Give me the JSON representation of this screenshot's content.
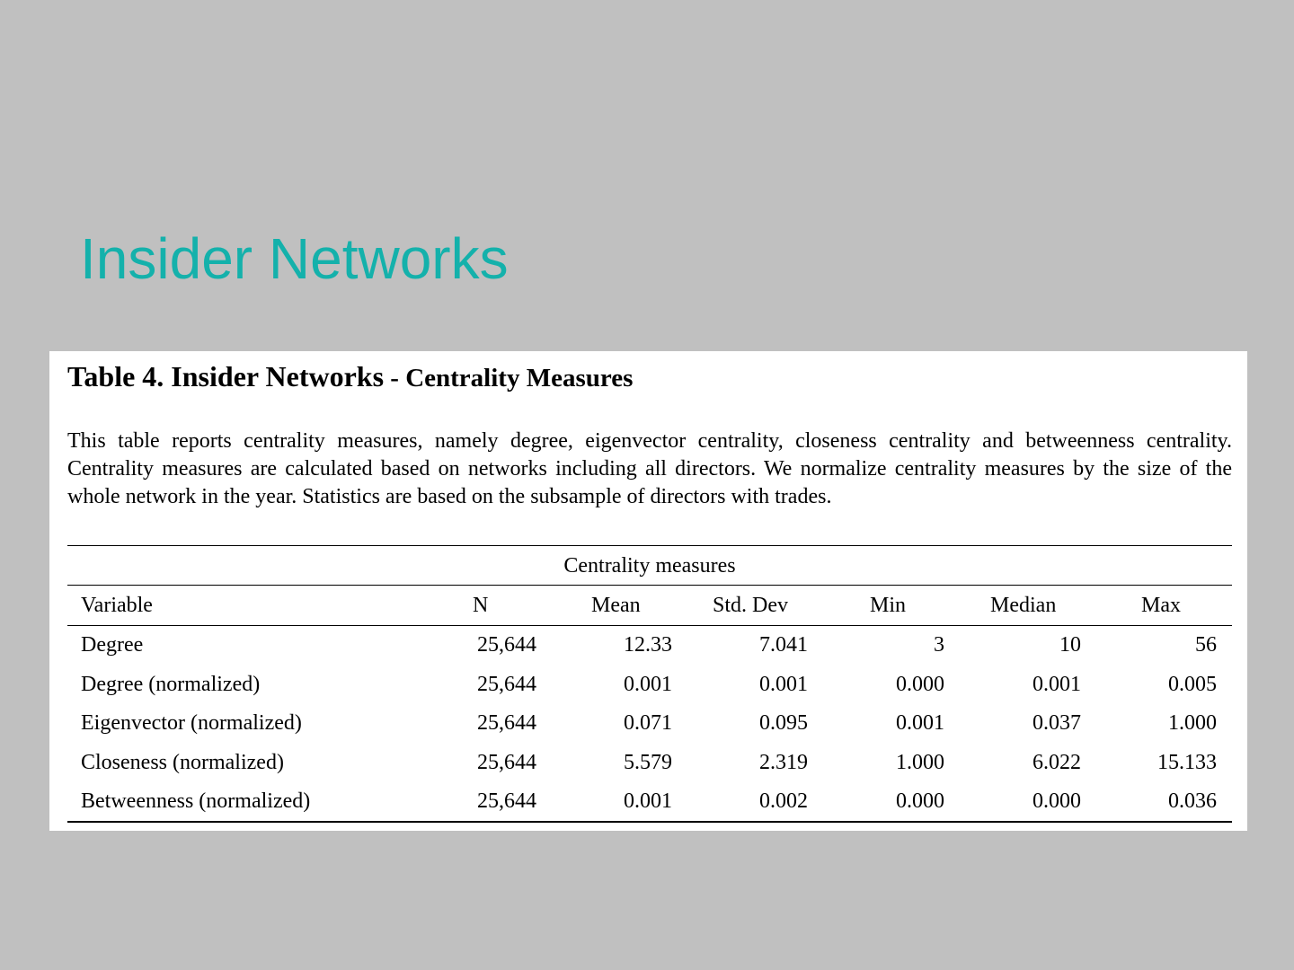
{
  "slide": {
    "title": "Insider Networks"
  },
  "table": {
    "title_main": "Table 4. Insider Networks",
    "title_sub": " - Centrality Measures",
    "caption": "This table reports centrality measures, namely degree, eigenvector centrality, closeness centrality and betweenness centrality. Centrality measures are calculated based on networks including all directors. We normalize centrality measures by the size of the whole network in the year. Statistics are based on the subsample of directors with trades.",
    "group_label": "Centrality measures",
    "columns": [
      "Variable",
      "N",
      "Mean",
      "Std. Dev",
      "Min",
      "Median",
      "Max"
    ],
    "rows": [
      [
        "Degree",
        "25,644",
        "12.33",
        "7.041",
        "3",
        "10",
        "56"
      ],
      [
        "Degree (normalized)",
        "25,644",
        "0.001",
        "0.001",
        "0.000",
        "0.001",
        "0.005"
      ],
      [
        "Eigenvector (normalized)",
        "25,644",
        "0.071",
        "0.095",
        "0.001",
        "0.037",
        "1.000"
      ],
      [
        "Closeness (normalized)",
        "25,644",
        "5.579",
        "2.319",
        "1.000",
        "6.022",
        "15.133"
      ],
      [
        "Betweenness (normalized)",
        "25,644",
        "0.001",
        "0.002",
        "0.000",
        "0.000",
        "0.036"
      ]
    ]
  }
}
